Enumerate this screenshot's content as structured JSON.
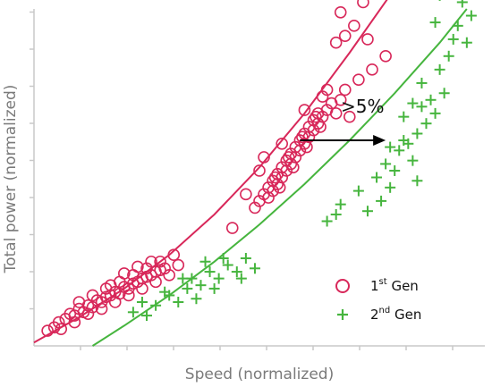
{
  "chart_data": {
    "type": "scatter",
    "xlabel": "Speed (normalized)",
    "ylabel": "Total power (normalized)",
    "xlim": [
      0,
      10
    ],
    "ylim": [
      0,
      10
    ],
    "grid": false,
    "legend_position": "bottom-right",
    "annotation": {
      "text": ">5%",
      "arrow_from": [
        5.9,
        6.1
      ],
      "arrow_to": [
        7.8,
        6.1
      ]
    },
    "series": [
      {
        "name": "1st Gen",
        "name_base": "1",
        "name_sup": "st",
        "name_rest": " Gen",
        "marker": "circle",
        "color": "#d8285a",
        "fit": {
          "x": [
            0.0,
            1.0,
            2.0,
            3.0,
            4.0,
            5.0,
            6.0,
            7.0,
            8.0
          ],
          "y": [
            0.1,
            0.85,
            1.7,
            2.7,
            3.9,
            5.3,
            6.9,
            8.7,
            10.6
          ]
        },
        "points": [
          [
            0.45,
            0.55
          ],
          [
            0.55,
            0.7
          ],
          [
            0.7,
            0.8
          ],
          [
            0.8,
            0.95
          ],
          [
            0.9,
            0.9
          ],
          [
            1.0,
            1.1
          ],
          [
            1.1,
            1.0
          ],
          [
            1.2,
            1.2
          ],
          [
            1.3,
            1.15
          ],
          [
            1.4,
            1.35
          ],
          [
            1.5,
            1.3
          ],
          [
            1.6,
            1.45
          ],
          [
            1.7,
            1.5
          ],
          [
            1.8,
            1.6
          ],
          [
            1.9,
            1.55
          ],
          [
            2.0,
            1.75
          ],
          [
            2.1,
            1.7
          ],
          [
            2.2,
            1.85
          ],
          [
            2.3,
            1.9
          ],
          [
            2.4,
            2.0
          ],
          [
            2.5,
            2.05
          ],
          [
            2.6,
            2.1
          ],
          [
            2.7,
            2.2
          ],
          [
            2.8,
            2.25
          ],
          [
            2.9,
            2.3
          ],
          [
            0.6,
            0.5
          ],
          [
            0.9,
            0.7
          ],
          [
            1.2,
            0.95
          ],
          [
            1.5,
            1.1
          ],
          [
            1.8,
            1.3
          ],
          [
            2.1,
            1.5
          ],
          [
            2.4,
            1.7
          ],
          [
            2.7,
            1.9
          ],
          [
            1.0,
            1.3
          ],
          [
            1.3,
            1.5
          ],
          [
            1.6,
            1.7
          ],
          [
            1.9,
            1.9
          ],
          [
            2.2,
            2.1
          ],
          [
            2.5,
            2.3
          ],
          [
            2.8,
            2.5
          ],
          [
            3.0,
            2.1
          ],
          [
            3.2,
            2.4
          ],
          [
            0.3,
            0.45
          ],
          [
            2.3,
            2.35
          ],
          [
            2.0,
            2.15
          ],
          [
            1.7,
            1.8
          ],
          [
            2.6,
            2.5
          ],
          [
            3.1,
            2.7
          ],
          [
            5.0,
            4.3
          ],
          [
            5.1,
            4.5
          ],
          [
            5.2,
            4.7
          ],
          [
            5.3,
            4.9
          ],
          [
            5.4,
            5.1
          ],
          [
            5.5,
            5.3
          ],
          [
            5.6,
            5.5
          ],
          [
            5.7,
            5.7
          ],
          [
            5.8,
            5.9
          ],
          [
            5.9,
            6.1
          ],
          [
            6.0,
            6.3
          ],
          [
            6.1,
            6.5
          ],
          [
            6.2,
            6.7
          ],
          [
            6.3,
            6.9
          ],
          [
            5.2,
            4.4
          ],
          [
            5.3,
            4.6
          ],
          [
            5.4,
            4.8
          ],
          [
            5.5,
            5.0
          ],
          [
            5.6,
            5.2
          ],
          [
            5.7,
            5.4
          ],
          [
            5.8,
            5.6
          ],
          [
            5.9,
            5.8
          ],
          [
            6.0,
            6.0
          ],
          [
            6.1,
            6.2
          ],
          [
            6.2,
            6.4
          ],
          [
            6.3,
            6.6
          ],
          [
            6.4,
            6.8
          ],
          [
            6.5,
            7.0
          ],
          [
            5.35,
            5.0
          ],
          [
            5.65,
            5.6
          ],
          [
            5.95,
            6.2
          ],
          [
            6.25,
            6.8
          ],
          [
            5.45,
            4.7
          ],
          [
            5.75,
            5.3
          ],
          [
            6.05,
            5.9
          ],
          [
            6.35,
            6.5
          ],
          [
            6.6,
            7.2
          ],
          [
            6.7,
            6.9
          ],
          [
            6.4,
            7.4
          ],
          [
            6.0,
            7.0
          ],
          [
            5.5,
            6.0
          ],
          [
            5.1,
            5.6
          ],
          [
            4.9,
            4.1
          ],
          [
            4.7,
            4.5
          ],
          [
            4.4,
            3.5
          ],
          [
            5.0,
            5.2
          ],
          [
            6.5,
            7.6
          ],
          [
            6.8,
            7.3
          ],
          [
            7.0,
            6.8
          ],
          [
            6.9,
            7.6
          ],
          [
            7.2,
            7.9
          ],
          [
            7.5,
            8.2
          ],
          [
            7.8,
            8.6
          ],
          [
            6.7,
            9.0
          ],
          [
            6.9,
            9.2
          ],
          [
            7.1,
            9.5
          ],
          [
            7.4,
            9.1
          ],
          [
            6.8,
            9.9
          ],
          [
            7.3,
            10.2
          ]
        ]
      },
      {
        "name": "2nd Gen",
        "name_base": "2",
        "name_sup": "nd",
        "name_rest": " Gen",
        "marker": "plus",
        "color": "#46b53e",
        "fit": {
          "x": [
            1.3,
            2.0,
            3.0,
            4.0,
            5.0,
            6.0,
            7.0,
            8.0,
            9.0,
            9.6
          ],
          "y": [
            0.0,
            0.6,
            1.5,
            2.5,
            3.6,
            4.8,
            6.1,
            7.5,
            9.0,
            10.0
          ]
        },
        "points": [
          [
            2.2,
            1.0
          ],
          [
            2.5,
            0.9
          ],
          [
            2.7,
            1.2
          ],
          [
            3.0,
            1.5
          ],
          [
            3.2,
            1.3
          ],
          [
            3.4,
            1.7
          ],
          [
            3.5,
            2.0
          ],
          [
            3.7,
            1.8
          ],
          [
            3.9,
            2.2
          ],
          [
            4.1,
            2.0
          ],
          [
            4.3,
            2.4
          ],
          [
            4.5,
            2.2
          ],
          [
            4.7,
            2.6
          ],
          [
            4.9,
            2.3
          ],
          [
            2.9,
            1.6
          ],
          [
            3.3,
            2.0
          ],
          [
            3.8,
            2.5
          ],
          [
            4.2,
            2.6
          ],
          [
            4.6,
            2.0
          ],
          [
            4.0,
            1.7
          ],
          [
            3.6,
            1.4
          ],
          [
            2.4,
            1.3
          ],
          [
            6.5,
            3.7
          ],
          [
            6.8,
            4.2
          ],
          [
            6.7,
            3.9
          ],
          [
            7.2,
            4.6
          ],
          [
            7.6,
            5.0
          ],
          [
            7.8,
            5.4
          ],
          [
            7.9,
            4.7
          ],
          [
            8.1,
            5.8
          ],
          [
            8.0,
            5.2
          ],
          [
            8.3,
            6.0
          ],
          [
            8.4,
            5.5
          ],
          [
            8.5,
            6.3
          ],
          [
            8.7,
            6.6
          ],
          [
            8.6,
            7.1
          ],
          [
            8.8,
            7.3
          ],
          [
            8.9,
            6.9
          ],
          [
            9.1,
            7.5
          ],
          [
            8.2,
            6.8
          ],
          [
            8.4,
            7.2
          ],
          [
            8.6,
            7.8
          ],
          [
            9.0,
            8.2
          ],
          [
            9.2,
            8.6
          ],
          [
            9.3,
            9.1
          ],
          [
            9.4,
            9.5
          ],
          [
            9.6,
            9.0
          ],
          [
            8.9,
            9.6
          ],
          [
            9.0,
            10.4
          ],
          [
            9.7,
            9.8
          ],
          [
            7.4,
            4.0
          ],
          [
            7.7,
            4.3
          ],
          [
            7.9,
            5.9
          ],
          [
            8.2,
            6.1
          ],
          [
            8.5,
            4.9
          ],
          [
            9.5,
            10.2
          ]
        ]
      }
    ]
  }
}
